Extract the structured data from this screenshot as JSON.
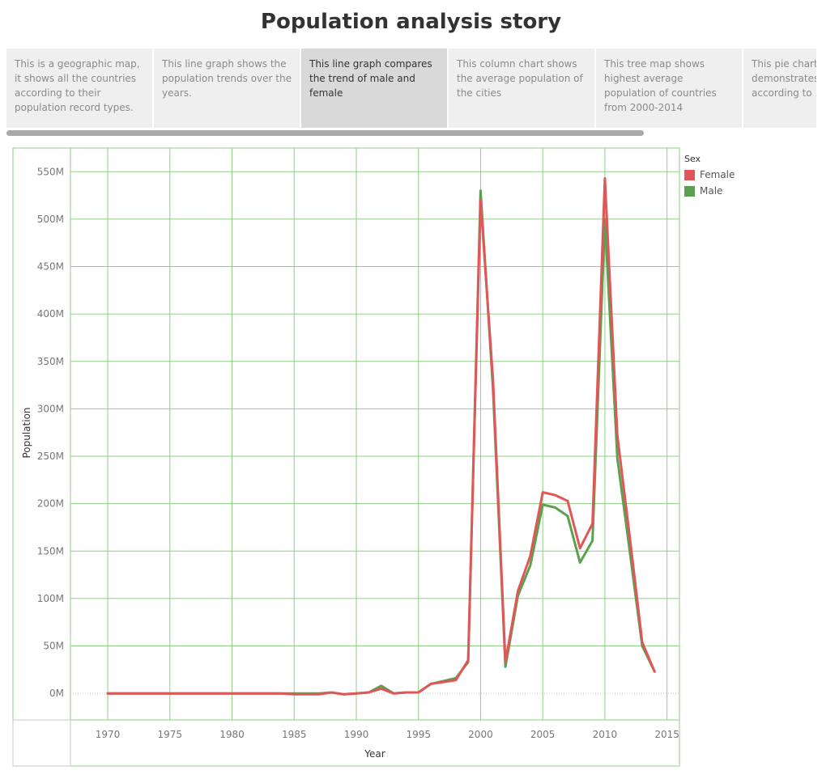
{
  "story": {
    "title": "Population analysis story",
    "nav_points": [
      {
        "text": "This is a geographic map, it shows all the countries according to their population record types.",
        "active": false
      },
      {
        "text": "This line graph shows the population trends over the years.",
        "active": false
      },
      {
        "text": "This line graph compares the trend of male and female",
        "active": true
      },
      {
        "text": "This column chart shows the average population of the cities",
        "active": false
      },
      {
        "text": "This tree map shows highest average population of countries from 2000-2014",
        "active": false
      },
      {
        "text": "This pie chart demonstrates the cities according to ..",
        "active": false
      }
    ]
  },
  "legend": {
    "title": "Sex",
    "items": [
      {
        "label": "Female",
        "color": "#e15759"
      },
      {
        "label": "Male",
        "color": "#59a14f"
      }
    ]
  },
  "chart_data": {
    "type": "line",
    "xlabel": "Year",
    "ylabel": "Population",
    "xlim": [
      1967,
      2016
    ],
    "ylim": [
      -28,
      575
    ],
    "y_unit": "M",
    "x_ticks": [
      1970,
      1975,
      1980,
      1985,
      1990,
      1995,
      2000,
      2005,
      2010,
      2015
    ],
    "y_ticks": [
      "0M",
      "50M",
      "100M",
      "150M",
      "200M",
      "250M",
      "300M",
      "350M",
      "400M",
      "450M",
      "500M",
      "550M"
    ],
    "grid": true,
    "legend_position": "top-right",
    "x": [
      1970,
      1971,
      1972,
      1973,
      1974,
      1975,
      1976,
      1977,
      1978,
      1979,
      1980,
      1981,
      1982,
      1983,
      1984,
      1985,
      1986,
      1987,
      1988,
      1989,
      1990,
      1991,
      1992,
      1993,
      1994,
      1995,
      1996,
      1997,
      1998,
      1999,
      2000,
      2001,
      2002,
      2003,
      2004,
      2005,
      2006,
      2007,
      2008,
      2009,
      2010,
      2011,
      2012,
      2013,
      2014
    ],
    "series": [
      {
        "name": "Male",
        "color": "#59a14f",
        "values": [
          0,
          0,
          0,
          0,
          0,
          0,
          0,
          0,
          0,
          0,
          0,
          0,
          0,
          0,
          0,
          0,
          0,
          0,
          1,
          -1,
          0,
          1,
          8,
          0,
          1,
          1,
          10,
          13,
          16,
          33,
          530,
          320,
          28,
          103,
          135,
          199,
          196,
          187,
          138,
          161,
          500,
          248,
          150,
          50,
          23
        ]
      },
      {
        "name": "Female",
        "color": "#e15759",
        "values": [
          0,
          0,
          0,
          0,
          0,
          0,
          0,
          0,
          0,
          0,
          0,
          0,
          0,
          0,
          0,
          -1,
          -1,
          -1,
          1,
          -1,
          0,
          1,
          5,
          0,
          1,
          1,
          10,
          12,
          14,
          35,
          520,
          330,
          33,
          108,
          145,
          212,
          209,
          203,
          153,
          179,
          543,
          272,
          165,
          54,
          23
        ]
      }
    ]
  }
}
